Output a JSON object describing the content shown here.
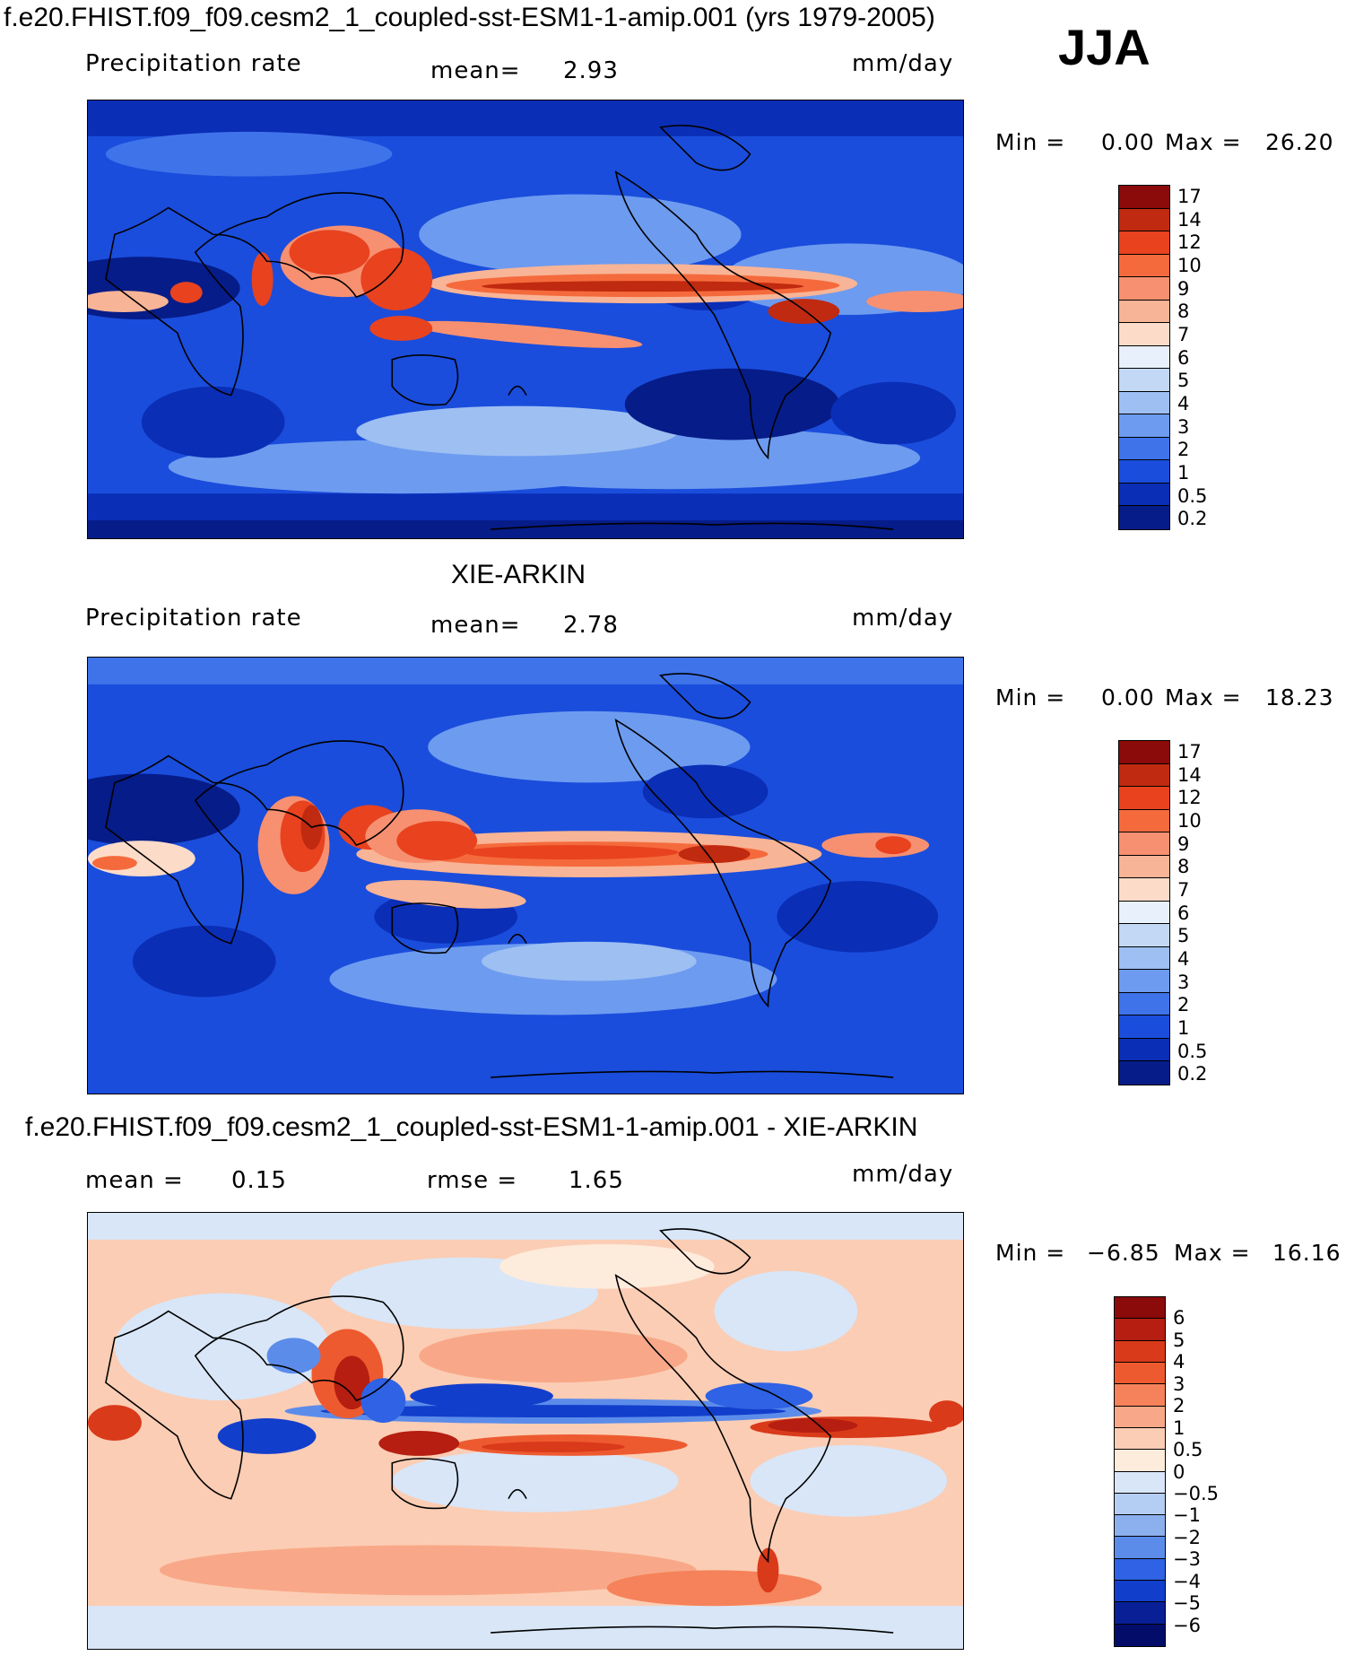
{
  "header": {
    "case_title": "f.e20.FHIST.f09_f09.cesm2_1_coupled-sst-ESM1-1-amip.001 (yrs 1979-2005)",
    "season": "JJA"
  },
  "panels": [
    {
      "id": "model",
      "title": "",
      "left_label": "Precipitation rate",
      "center_label": "mean=",
      "center_value": "2.93",
      "units": "mm/day",
      "min_label": "Min =",
      "min_value": "0.00",
      "max_label": "Max =",
      "max_value": "26.20",
      "colorbar_ticks": [
        "17",
        "14",
        "12",
        "10",
        "9",
        "8",
        "7",
        "6",
        "5",
        "4",
        "3",
        "2",
        "1",
        "0.5",
        "0.2"
      ],
      "colorbar_colors": [
        "#8b0a0a",
        "#c02a10",
        "#e8421f",
        "#f56a3c",
        "#f79070",
        "#f8b496",
        "#fcdcc8",
        "#e8f0fb",
        "#c2d8f5",
        "#9dbff2",
        "#6d9bef",
        "#3f73ea",
        "#1a4ddc",
        "#0b2eb6",
        "#061c88"
      ],
      "palette_kind": "precip"
    },
    {
      "id": "obs",
      "title": "XIE-ARKIN",
      "left_label": "Precipitation rate",
      "center_label": "mean=",
      "center_value": "2.78",
      "units": "mm/day",
      "min_label": "Min =",
      "min_value": "0.00",
      "max_label": "Max =",
      "max_value": "18.23",
      "colorbar_ticks": [
        "17",
        "14",
        "12",
        "10",
        "9",
        "8",
        "7",
        "6",
        "5",
        "4",
        "3",
        "2",
        "1",
        "0.5",
        "0.2"
      ],
      "colorbar_colors": [
        "#8b0a0a",
        "#c02a10",
        "#e8421f",
        "#f56a3c",
        "#f79070",
        "#f8b496",
        "#fcdcc8",
        "#e8f0fb",
        "#c2d8f5",
        "#9dbff2",
        "#6d9bef",
        "#3f73ea",
        "#1a4ddc",
        "#0b2eb6",
        "#061c88"
      ],
      "palette_kind": "precip"
    },
    {
      "id": "diff",
      "title": "f.e20.FHIST.f09_f09.cesm2_1_coupled-sst-ESM1-1-amip.001 - XIE-ARKIN",
      "left_label": "mean =",
      "left_value": "0.15",
      "center_label": "rmse =",
      "center_value": "1.65",
      "units": "mm/day",
      "min_label": "Min =",
      "min_value": "−6.85",
      "max_label": "Max =",
      "max_value": "16.16",
      "colorbar_ticks": [
        "6",
        "5",
        "4",
        "3",
        "2",
        "1",
        "0.5",
        "0",
        "−0.5",
        "−1",
        "−2",
        "−3",
        "−4",
        "−5",
        "−6"
      ],
      "colorbar_colors": [
        "#8b0a0a",
        "#b51e10",
        "#d93a1a",
        "#ee5a30",
        "#f5825a",
        "#f8a888",
        "#fbcdb4",
        "#fdebdc",
        "#d8e6f8",
        "#b4cdf2",
        "#8cb0ee",
        "#5c8cea",
        "#2f62e4",
        "#123ecc",
        "#081f96",
        "#040c6a"
      ],
      "palette_kind": "diff"
    }
  ]
}
